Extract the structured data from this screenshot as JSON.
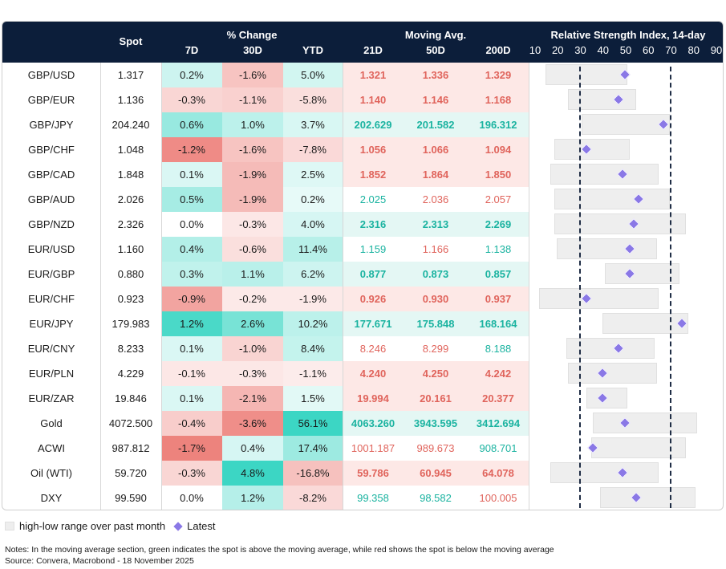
{
  "header": {
    "spot": "Spot",
    "pct_change": "% Change",
    "moving_avg": "Moving Avg.",
    "rsi_title": "Relative Strength Index, 14-day",
    "sub_7d": "7D",
    "sub_30d": "30D",
    "sub_ytd": "YTD",
    "sub_21d": "21D",
    "sub_50d": "50D",
    "sub_200d": "200D",
    "rsi_ticks": [
      "10",
      "20",
      "30",
      "40",
      "50",
      "60",
      "70",
      "80",
      "90"
    ]
  },
  "rsi_axis": {
    "min": 10,
    "max": 90,
    "thresholds": [
      30,
      70
    ]
  },
  "rows": [
    {
      "name": "GBP/USD",
      "spot": "1.317",
      "d7": "0.2%",
      "d30": "-1.6%",
      "ytd": "5.0%",
      "ma21": "1.321",
      "ma50": "1.336",
      "ma200": "1.329",
      "v7": 0.2,
      "v30": -1.6,
      "vytd": 5.0,
      "ma_signal": "below",
      "ma_bold": true,
      "rsi": {
        "low": 15,
        "high": 51,
        "latest": 50
      }
    },
    {
      "name": "GBP/EUR",
      "spot": "1.136",
      "d7": "-0.3%",
      "d30": "-1.1%",
      "ytd": "-5.8%",
      "ma21": "1.140",
      "ma50": "1.146",
      "ma200": "1.168",
      "v7": -0.3,
      "v30": -1.1,
      "vytd": -5.8,
      "ma_signal": "below",
      "ma_bold": true,
      "rsi": {
        "low": 25,
        "high": 55,
        "latest": 47
      }
    },
    {
      "name": "GBP/JPY",
      "spot": "204.240",
      "d7": "0.6%",
      "d30": "1.0%",
      "ytd": "3.7%",
      "ma21": "202.629",
      "ma50": "201.582",
      "ma200": "196.312",
      "v7": 0.6,
      "v30": 1.0,
      "vytd": 3.7,
      "ma_signal": "above",
      "ma_bold": true,
      "rsi": {
        "low": 31,
        "high": 70,
        "latest": 67
      }
    },
    {
      "name": "GBP/CHF",
      "spot": "1.048",
      "d7": "-1.2%",
      "d30": "-1.6%",
      "ytd": "-7.8%",
      "ma21": "1.056",
      "ma50": "1.066",
      "ma200": "1.094",
      "v7": -1.2,
      "v30": -1.6,
      "vytd": -7.8,
      "ma_signal": "below",
      "ma_bold": true,
      "rsi": {
        "low": 19,
        "high": 52,
        "latest": 33
      }
    },
    {
      "name": "GBP/CAD",
      "spot": "1.848",
      "d7": "0.1%",
      "d30": "-1.9%",
      "ytd": "2.5%",
      "ma21": "1.852",
      "ma50": "1.864",
      "ma200": "1.850",
      "v7": 0.1,
      "v30": -1.9,
      "vytd": 2.5,
      "ma_signal": "below",
      "ma_bold": true,
      "rsi": {
        "low": 17,
        "high": 65,
        "latest": 49
      }
    },
    {
      "name": "GBP/AUD",
      "spot": "2.026",
      "d7": "0.5%",
      "d30": "-1.9%",
      "ytd": "0.2%",
      "ma21": "2.025",
      "ma50": "2.036",
      "ma200": "2.057",
      "v7": 0.5,
      "v30": -1.9,
      "vytd": 0.2,
      "ma_signal": "mixed",
      "ma_bold": false,
      "ma_colors": [
        "above",
        "below",
        "below"
      ],
      "rsi": {
        "low": 19,
        "high": 70,
        "latest": 56
      }
    },
    {
      "name": "GBP/NZD",
      "spot": "2.326",
      "d7": "0.0%",
      "d30": "-0.3%",
      "ytd": "4.0%",
      "ma21": "2.316",
      "ma50": "2.313",
      "ma200": "2.269",
      "v7": 0.0,
      "v30": -0.3,
      "vytd": 4.0,
      "ma_signal": "above",
      "ma_bold": true,
      "rsi": {
        "low": 19,
        "high": 77,
        "latest": 54
      }
    },
    {
      "name": "EUR/USD",
      "spot": "1.160",
      "d7": "0.4%",
      "d30": "-0.6%",
      "ytd": "11.4%",
      "ma21": "1.159",
      "ma50": "1.166",
      "ma200": "1.138",
      "v7": 0.4,
      "v30": -0.6,
      "vytd": 11.4,
      "ma_signal": "mixed",
      "ma_bold": false,
      "ma_colors": [
        "above",
        "below",
        "above"
      ],
      "rsi": {
        "low": 20,
        "high": 64,
        "latest": 52
      }
    },
    {
      "name": "EUR/GBP",
      "spot": "0.880",
      "d7": "0.3%",
      "d30": "1.1%",
      "ytd": "6.2%",
      "ma21": "0.877",
      "ma50": "0.873",
      "ma200": "0.857",
      "v7": 0.3,
      "v30": 1.1,
      "vytd": 6.2,
      "ma_signal": "above",
      "ma_bold": true,
      "rsi": {
        "low": 41,
        "high": 74,
        "latest": 52
      }
    },
    {
      "name": "EUR/CHF",
      "spot": "0.923",
      "d7": "-0.9%",
      "d30": "-0.2%",
      "ytd": "-1.9%",
      "ma21": "0.926",
      "ma50": "0.930",
      "ma200": "0.937",
      "v7": -0.9,
      "v30": -0.2,
      "vytd": -1.9,
      "ma_signal": "below",
      "ma_bold": true,
      "rsi": {
        "low": 12,
        "high": 65,
        "latest": 33
      }
    },
    {
      "name": "EUR/JPY",
      "spot": "179.983",
      "d7": "1.2%",
      "d30": "2.6%",
      "ytd": "10.2%",
      "ma21": "177.671",
      "ma50": "175.848",
      "ma200": "168.164",
      "v7": 1.2,
      "v30": 2.6,
      "vytd": 10.2,
      "ma_signal": "above",
      "ma_bold": true,
      "rsi": {
        "low": 40,
        "high": 78,
        "latest": 75
      }
    },
    {
      "name": "EUR/CNY",
      "spot": "8.233",
      "d7": "0.1%",
      "d30": "-1.0%",
      "ytd": "8.4%",
      "ma21": "8.246",
      "ma50": "8.299",
      "ma200": "8.188",
      "v7": 0.1,
      "v30": -1.0,
      "vytd": 8.4,
      "ma_signal": "mixed",
      "ma_bold": false,
      "ma_colors": [
        "below",
        "below",
        "above"
      ],
      "rsi": {
        "low": 24,
        "high": 63,
        "latest": 47
      }
    },
    {
      "name": "EUR/PLN",
      "spot": "4.229",
      "d7": "-0.1%",
      "d30": "-0.3%",
      "ytd": "-1.1%",
      "ma21": "4.240",
      "ma50": "4.250",
      "ma200": "4.242",
      "v7": -0.1,
      "v30": -0.3,
      "vytd": -1.1,
      "ma_signal": "below",
      "ma_bold": true,
      "rsi": {
        "low": 25,
        "high": 64,
        "latest": 40
      }
    },
    {
      "name": "EUR/ZAR",
      "spot": "19.846",
      "d7": "0.1%",
      "d30": "-2.1%",
      "ytd": "1.5%",
      "ma21": "19.994",
      "ma50": "20.161",
      "ma200": "20.377",
      "v7": 0.1,
      "v30": -2.1,
      "vytd": 1.5,
      "ma_signal": "below",
      "ma_bold": true,
      "rsi": {
        "low": 33,
        "high": 51,
        "latest": 40
      }
    },
    {
      "name": "Gold",
      "spot": "4072.500",
      "d7": "-0.4%",
      "d30": "-3.6%",
      "ytd": "56.1%",
      "ma21": "4063.260",
      "ma50": "3943.595",
      "ma200": "3412.694",
      "v7": -0.4,
      "v30": -3.6,
      "vytd": 56.1,
      "ma_signal": "above",
      "ma_bold": true,
      "rsi": {
        "low": 36,
        "high": 82,
        "latest": 50
      }
    },
    {
      "name": "ACWI",
      "spot": "987.812",
      "d7": "-1.7%",
      "d30": "0.4%",
      "ytd": "17.4%",
      "ma21": "1001.187",
      "ma50": "989.673",
      "ma200": "908.701",
      "v7": -1.7,
      "v30": 0.4,
      "vytd": 17.4,
      "ma_signal": "mixed",
      "ma_bold": false,
      "ma_colors": [
        "below",
        "below",
        "above"
      ],
      "rsi": {
        "low": 35,
        "high": 77,
        "latest": 36
      }
    },
    {
      "name": "Oil (WTI)",
      "spot": "59.720",
      "d7": "-0.3%",
      "d30": "4.8%",
      "ytd": "-16.8%",
      "ma21": "59.786",
      "ma50": "60.945",
      "ma200": "64.078",
      "v7": -0.3,
      "v30": 4.8,
      "vytd": -16.8,
      "ma_signal": "below",
      "ma_bold": true,
      "rsi": {
        "low": 17,
        "high": 65,
        "latest": 49
      }
    },
    {
      "name": "DXY",
      "spot": "99.590",
      "d7": "0.0%",
      "d30": "1.2%",
      "ytd": "-8.2%",
      "ma21": "99.358",
      "ma50": "98.582",
      "ma200": "100.005",
      "v7": 0.0,
      "v30": 1.2,
      "vytd": -8.2,
      "ma_signal": "mixed",
      "ma_bold": false,
      "ma_colors": [
        "above",
        "above",
        "below"
      ],
      "rsi": {
        "low": 39,
        "high": 81,
        "latest": 55
      }
    }
  ],
  "colors": {
    "green_text": "#1ab3a0",
    "red_text": "#e0645c",
    "header_bg": "#0c1e3a",
    "diamond": "#8a78e6"
  },
  "legend": {
    "range": "high-low range over past month",
    "latest": "Latest"
  },
  "notes": {
    "line1": "Notes: In the moving average section, green indicates the spot is above the moving average, while red shows the spot is below the moving average",
    "line2": "Source: Convera, Macrobond - 18 November 2025"
  }
}
